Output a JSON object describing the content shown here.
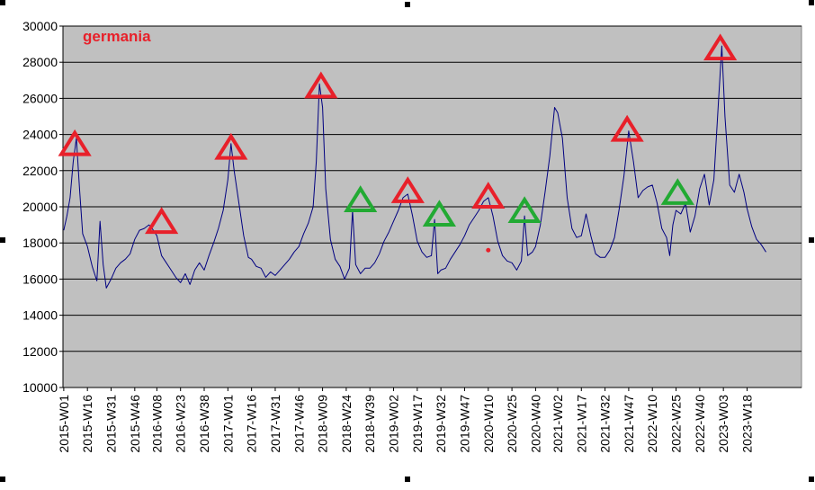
{
  "chart_data": {
    "type": "line",
    "title": "germania",
    "xlabel": "",
    "ylabel": "",
    "ylim": [
      10000,
      30000
    ],
    "yticks": [
      "10000",
      "12000",
      "14000",
      "16000",
      "18000",
      "20000",
      "22000",
      "24000",
      "26000",
      "28000",
      "30000"
    ],
    "xticks": [
      "2015-W01",
      "2015-W16",
      "2015-W31",
      "2015-W46",
      "2016-W08",
      "2016-W23",
      "2016-W38",
      "2017-W01",
      "2017-W16",
      "2017-W31",
      "2017-W46",
      "2018-W09",
      "2018-W24",
      "2018-W39",
      "2019-W02",
      "2019-W17",
      "2019-W32",
      "2019-W47",
      "2020-W10",
      "2020-W25",
      "2020-W40",
      "2021-W02",
      "2021-W17",
      "2021-W32",
      "2021-W47",
      "2022-W10",
      "2022-W25",
      "2022-W40",
      "2023-W03",
      "2023-W18"
    ],
    "grid": true,
    "legend": "none",
    "series": [
      {
        "color": "#000080",
        "points": [
          [
            "2015-W01",
            18700
          ],
          [
            "2015-W03",
            19500
          ],
          [
            "2015-W05",
            20500
          ],
          [
            "2015-W07",
            22500
          ],
          [
            "2015-W09",
            23800
          ],
          [
            "2015-W11",
            21000
          ],
          [
            "2015-W13",
            18500
          ],
          [
            "2015-W16",
            17800
          ],
          [
            "2015-W19",
            16700
          ],
          [
            "2015-W22",
            15900
          ],
          [
            "2015-W24",
            19200
          ],
          [
            "2015-W26",
            16800
          ],
          [
            "2015-W28",
            15500
          ],
          [
            "2015-W31",
            16000
          ],
          [
            "2015-W34",
            16600
          ],
          [
            "2015-W37",
            16900
          ],
          [
            "2015-W40",
            17100
          ],
          [
            "2015-W43",
            17400
          ],
          [
            "2015-W46",
            18200
          ],
          [
            "2015-W49",
            18700
          ],
          [
            "2015-W52",
            18800
          ],
          [
            "2016-W03",
            19000
          ],
          [
            "2016-W05",
            18800
          ],
          [
            "2016-W08",
            18400
          ],
          [
            "2016-W11",
            17300
          ],
          [
            "2016-W14",
            16900
          ],
          [
            "2016-W17",
            16500
          ],
          [
            "2016-W20",
            16100
          ],
          [
            "2016-W23",
            15800
          ],
          [
            "2016-W26",
            16300
          ],
          [
            "2016-W29",
            15700
          ],
          [
            "2016-W32",
            16500
          ],
          [
            "2016-W35",
            16900
          ],
          [
            "2016-W38",
            16500
          ],
          [
            "2016-W41",
            17300
          ],
          [
            "2016-W44",
            18000
          ],
          [
            "2016-W47",
            18800
          ],
          [
            "2016-W50",
            19800
          ],
          [
            "2017-W01",
            21500
          ],
          [
            "2017-W03",
            23500
          ],
          [
            "2017-W05",
            22000
          ],
          [
            "2017-W08",
            20200
          ],
          [
            "2017-W11",
            18400
          ],
          [
            "2017-W14",
            17200
          ],
          [
            "2017-W16",
            17100
          ],
          [
            "2017-W19",
            16700
          ],
          [
            "2017-W22",
            16600
          ],
          [
            "2017-W25",
            16100
          ],
          [
            "2017-W28",
            16400
          ],
          [
            "2017-W31",
            16200
          ],
          [
            "2017-W34",
            16500
          ],
          [
            "2017-W37",
            16800
          ],
          [
            "2017-W40",
            17100
          ],
          [
            "2017-W43",
            17500
          ],
          [
            "2017-W46",
            17800
          ],
          [
            "2017-W49",
            18500
          ],
          [
            "2017-W52",
            19100
          ],
          [
            "2018-W03",
            20000
          ],
          [
            "2018-W05",
            22500
          ],
          [
            "2018-W07",
            26800
          ],
          [
            "2018-W09",
            25500
          ],
          [
            "2018-W11",
            21000
          ],
          [
            "2018-W14",
            18200
          ],
          [
            "2018-W17",
            17100
          ],
          [
            "2018-W20",
            16700
          ],
          [
            "2018-W23",
            16000
          ],
          [
            "2018-W26",
            16600
          ],
          [
            "2018-W28",
            19800
          ],
          [
            "2018-W30",
            16800
          ],
          [
            "2018-W33",
            16300
          ],
          [
            "2018-W36",
            16600
          ],
          [
            "2018-W39",
            16600
          ],
          [
            "2018-W42",
            16900
          ],
          [
            "2018-W45",
            17400
          ],
          [
            "2018-W48",
            18100
          ],
          [
            "2018-W51",
            18600
          ],
          [
            "2019-W02",
            19200
          ],
          [
            "2019-W05",
            19800
          ],
          [
            "2019-W08",
            20500
          ],
          [
            "2019-W11",
            20700
          ],
          [
            "2019-W14",
            19500
          ],
          [
            "2019-W17",
            18100
          ],
          [
            "2019-W20",
            17500
          ],
          [
            "2019-W23",
            17200
          ],
          [
            "2019-W26",
            17300
          ],
          [
            "2019-W28",
            19300
          ],
          [
            "2019-W30",
            16300
          ],
          [
            "2019-W32",
            16500
          ],
          [
            "2019-W35",
            16600
          ],
          [
            "2019-W38",
            17100
          ],
          [
            "2019-W41",
            17500
          ],
          [
            "2019-W44",
            17900
          ],
          [
            "2019-W47",
            18400
          ],
          [
            "2019-W50",
            19000
          ],
          [
            "2020-W01",
            19400
          ],
          [
            "2020-W04",
            19800
          ],
          [
            "2020-W07",
            20300
          ],
          [
            "2020-W10",
            20500
          ],
          [
            "2020-W13",
            19500
          ],
          [
            "2020-W16",
            18100
          ],
          [
            "2020-W19",
            17300
          ],
          [
            "2020-W22",
            17000
          ],
          [
            "2020-W25",
            16900
          ],
          [
            "2020-W28",
            16500
          ],
          [
            "2020-W31",
            17000
          ],
          [
            "2020-W33",
            19500
          ],
          [
            "2020-W35",
            17300
          ],
          [
            "2020-W38",
            17500
          ],
          [
            "2020-W40",
            17800
          ],
          [
            "2020-W43",
            19000
          ],
          [
            "2020-W46",
            20800
          ],
          [
            "2020-W49",
            22800
          ],
          [
            "2020-W52",
            25500
          ],
          [
            "2021-W02",
            25200
          ],
          [
            "2021-W05",
            23800
          ],
          [
            "2021-W08",
            20500
          ],
          [
            "2021-W11",
            18800
          ],
          [
            "2021-W14",
            18300
          ],
          [
            "2021-W17",
            18400
          ],
          [
            "2021-W20",
            19600
          ],
          [
            "2021-W23",
            18400
          ],
          [
            "2021-W26",
            17400
          ],
          [
            "2021-W29",
            17200
          ],
          [
            "2021-W32",
            17200
          ],
          [
            "2021-W35",
            17600
          ],
          [
            "2021-W38",
            18300
          ],
          [
            "2021-W41",
            19900
          ],
          [
            "2021-W44",
            21700
          ],
          [
            "2021-W47",
            24200
          ],
          [
            "2021-W50",
            22500
          ],
          [
            "2022-W01",
            20500
          ],
          [
            "2022-W04",
            20900
          ],
          [
            "2022-W07",
            21100
          ],
          [
            "2022-W10",
            21200
          ],
          [
            "2022-W13",
            20200
          ],
          [
            "2022-W16",
            18800
          ],
          [
            "2022-W19",
            18300
          ],
          [
            "2022-W21",
            17300
          ],
          [
            "2022-W23",
            19000
          ],
          [
            "2022-W25",
            19800
          ],
          [
            "2022-W28",
            19600
          ],
          [
            "2022-W31",
            20200
          ],
          [
            "2022-W34",
            18600
          ],
          [
            "2022-W37",
            19500
          ],
          [
            "2022-W40",
            21000
          ],
          [
            "2022-W43",
            21800
          ],
          [
            "2022-W46",
            20100
          ],
          [
            "2022-W49",
            21500
          ],
          [
            "2022-W52",
            26000
          ],
          [
            "2023-W02",
            28900
          ],
          [
            "2023-W04",
            25000
          ],
          [
            "2023-W07",
            21200
          ],
          [
            "2023-W10",
            20800
          ],
          [
            "2023-W13",
            21800
          ],
          [
            "2023-W16",
            20800
          ],
          [
            "2023-W18",
            19900
          ],
          [
            "2023-W21",
            18900
          ],
          [
            "2023-W24",
            18200
          ],
          [
            "2023-W27",
            17900
          ],
          [
            "2023-W30",
            17500
          ]
        ]
      }
    ],
    "annotations": [
      {
        "shape": "triangle",
        "color": "#e8202a",
        "x": "2015-W08",
        "y": 23500
      },
      {
        "shape": "triangle",
        "color": "#e8202a",
        "x": "2016-W11",
        "y": 19200
      },
      {
        "shape": "triangle",
        "color": "#e8202a",
        "x": "2017-W03",
        "y": 23300
      },
      {
        "shape": "triangle",
        "color": "#e8202a",
        "x": "2018-W08",
        "y": 26700
      },
      {
        "shape": "triangle",
        "color": "#22aa33",
        "x": "2018-W33",
        "y": 20400
      },
      {
        "shape": "triangle",
        "color": "#e8202a",
        "x": "2019-W11",
        "y": 20900
      },
      {
        "shape": "triangle",
        "color": "#22aa33",
        "x": "2019-W31",
        "y": 19600
      },
      {
        "shape": "triangle",
        "color": "#e8202a",
        "x": "2020-W10",
        "y": 20600
      },
      {
        "shape": "triangle",
        "color": "#22aa33",
        "x": "2020-W33",
        "y": 19800
      },
      {
        "shape": "triangle",
        "color": "#e8202a",
        "x": "2021-W46",
        "y": 24300
      },
      {
        "shape": "triangle",
        "color": "#22aa33",
        "x": "2022-W26",
        "y": 20800
      },
      {
        "shape": "triangle",
        "color": "#e8202a",
        "x": "2023-W01",
        "y": 28800
      },
      {
        "shape": "dot",
        "color": "#e8202a",
        "x": "2020-W10",
        "y": 17600
      }
    ],
    "colors": {
      "plot_background": "#c0c0c0",
      "gridline": "#000000",
      "line": "#000080",
      "title": "#e8202a",
      "marker_red": "#e8202a",
      "marker_green": "#22aa33"
    }
  }
}
